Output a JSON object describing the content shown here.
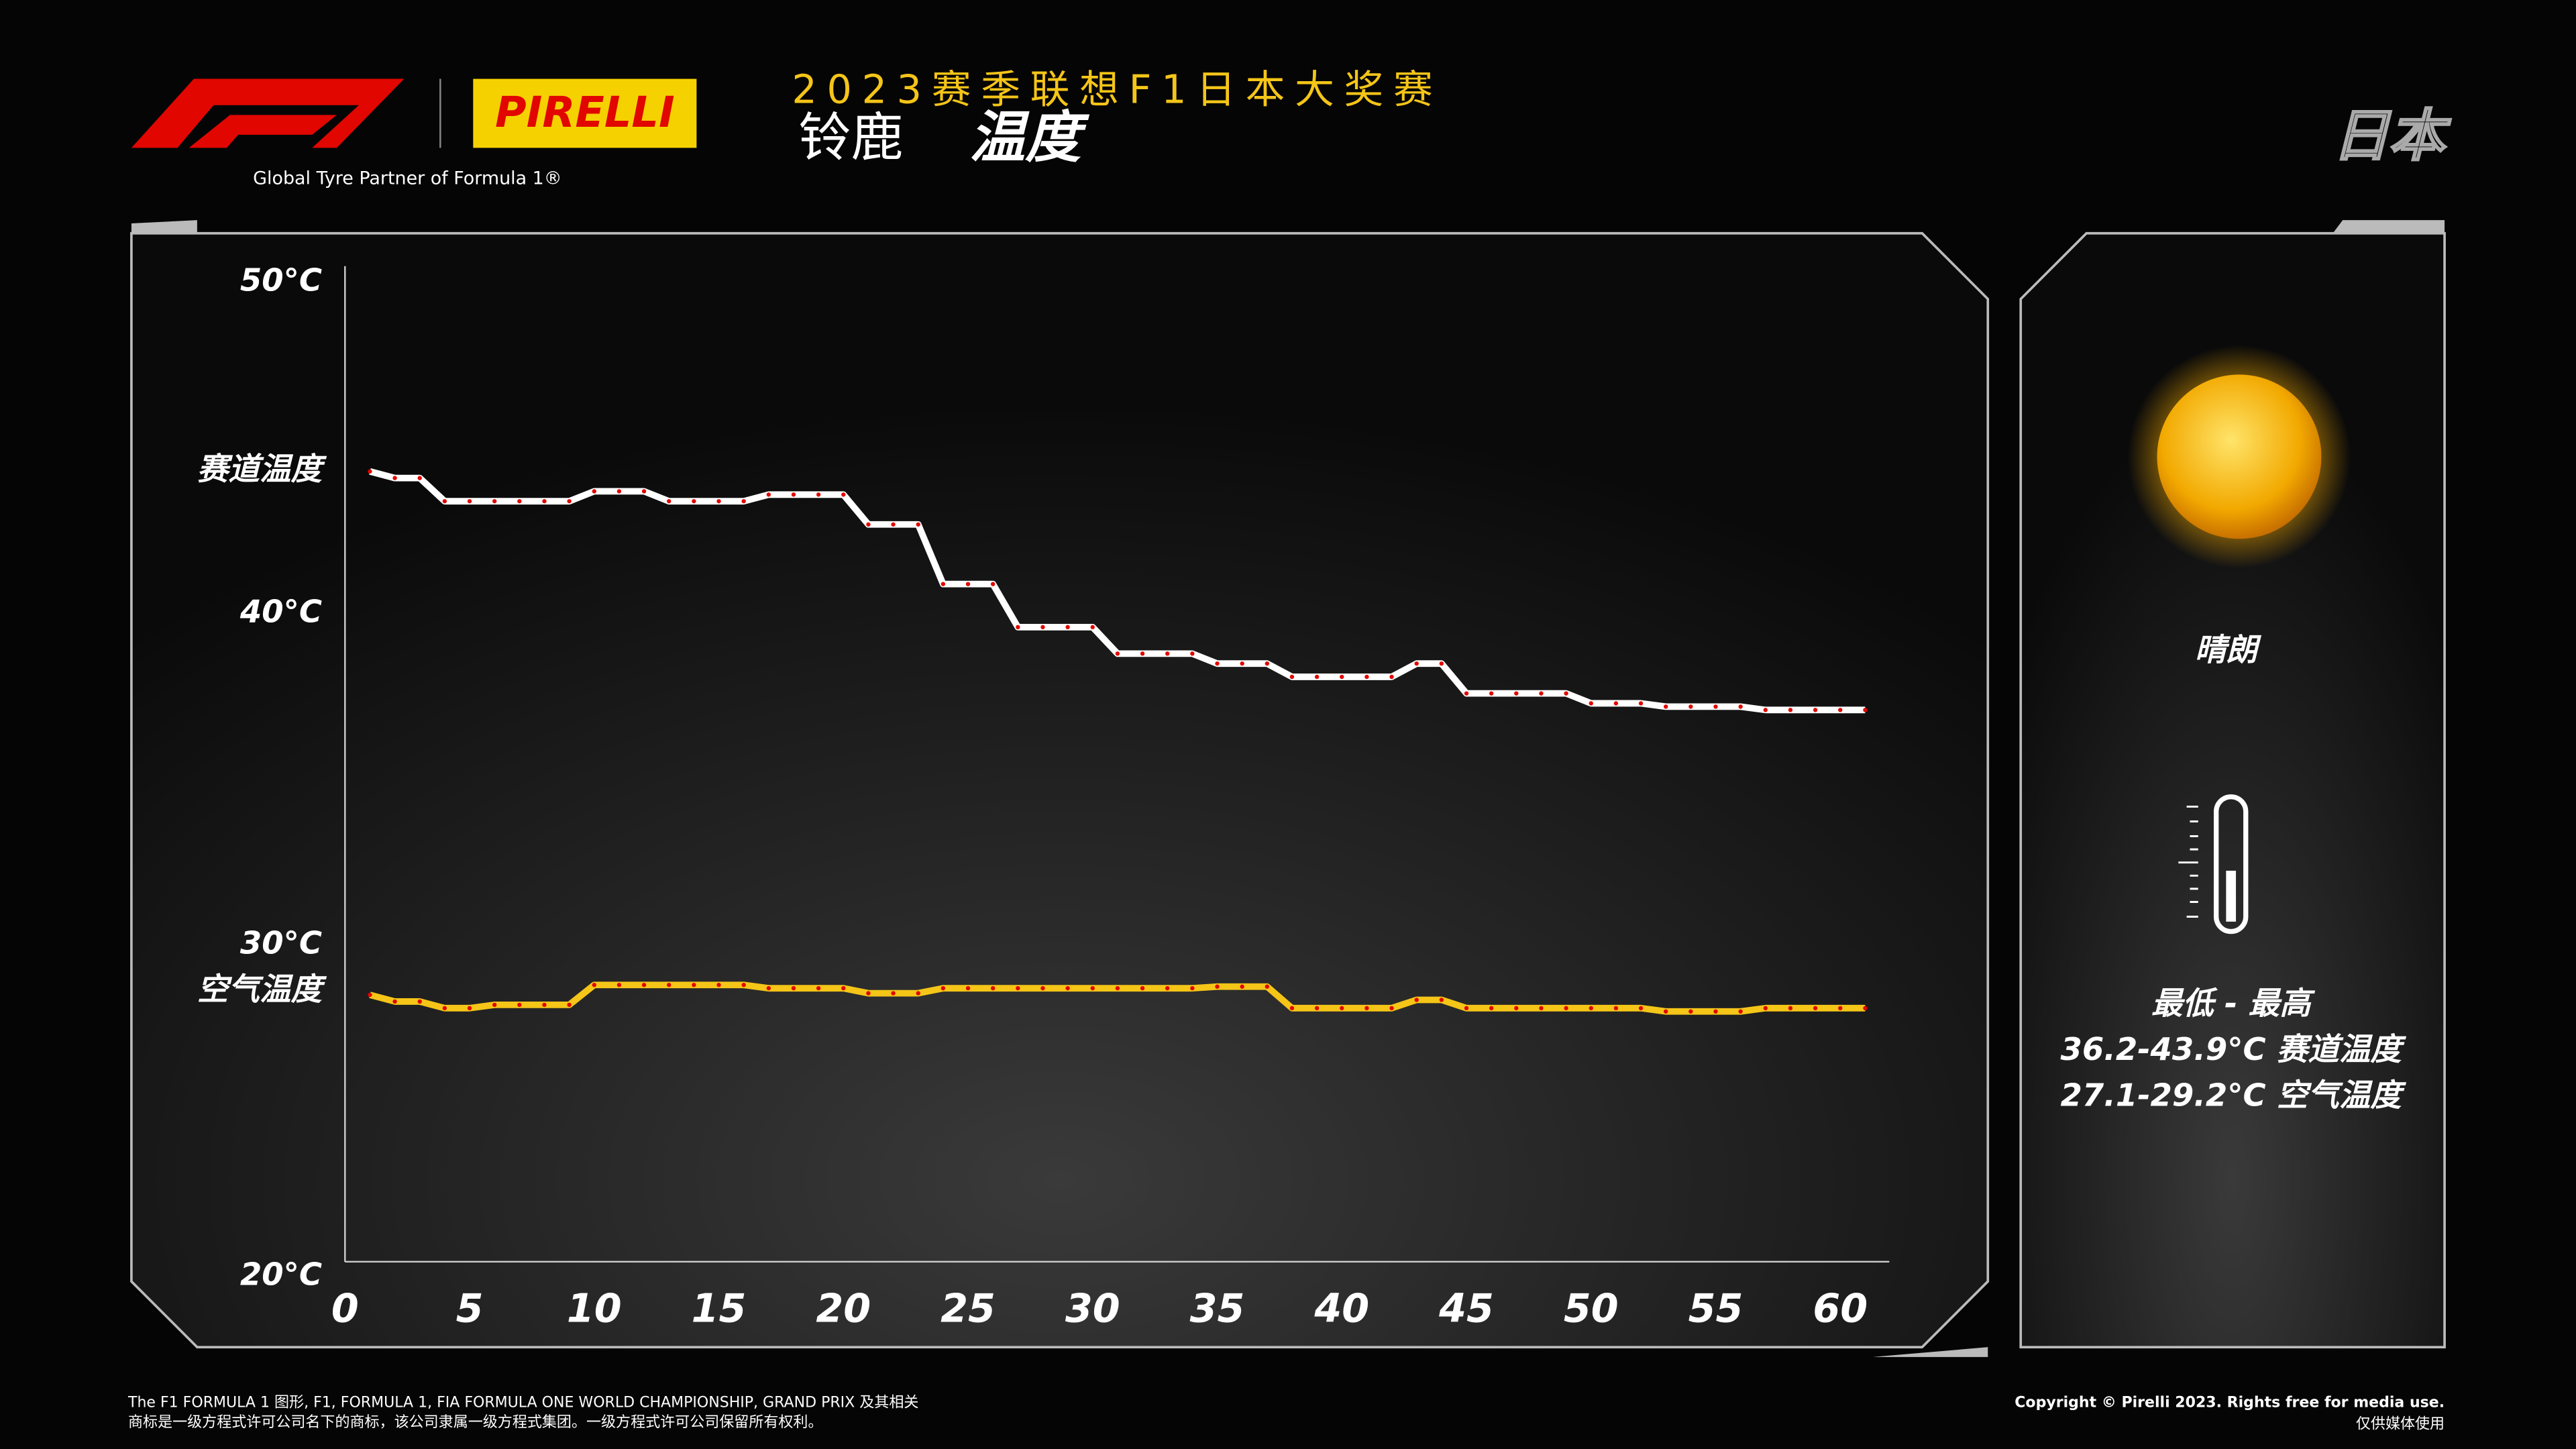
{
  "header": {
    "title": "2023赛季联想F1日本大奖赛",
    "circuit": "铃鹿",
    "subject": "温度",
    "country": "日本",
    "partner": "Global Tyre Partner of Formula 1®",
    "brand": "PIRELLI"
  },
  "chart_data": {
    "type": "line",
    "x": [
      1,
      2,
      3,
      4,
      5,
      6,
      7,
      8,
      9,
      10,
      11,
      12,
      13,
      14,
      15,
      16,
      17,
      18,
      19,
      20,
      21,
      22,
      23,
      24,
      25,
      26,
      27,
      28,
      29,
      30,
      31,
      32,
      33,
      34,
      35,
      36,
      37,
      38,
      39,
      40,
      41,
      42,
      43,
      44,
      45,
      46,
      47,
      48,
      49,
      50,
      51,
      52,
      53,
      54,
      55,
      56,
      57,
      58,
      59,
      60,
      61
    ],
    "series": [
      {
        "name": "赛道温度",
        "color": "#ffffff",
        "values": [
          44.3,
          44.1,
          44.1,
          43.4,
          43.4,
          43.4,
          43.4,
          43.4,
          43.4,
          43.7,
          43.7,
          43.7,
          43.4,
          43.4,
          43.4,
          43.4,
          43.6,
          43.6,
          43.6,
          43.6,
          42.7,
          42.7,
          42.7,
          40.9,
          40.9,
          40.9,
          39.6,
          39.6,
          39.6,
          39.6,
          38.8,
          38.8,
          38.8,
          38.8,
          38.5,
          38.5,
          38.5,
          38.1,
          38.1,
          38.1,
          38.1,
          38.1,
          38.5,
          38.5,
          37.6,
          37.6,
          37.6,
          37.6,
          37.6,
          37.3,
          37.3,
          37.3,
          37.2,
          37.2,
          37.2,
          37.2,
          37.1,
          37.1,
          37.1,
          37.1,
          37.1
        ]
      },
      {
        "name": "空气温度",
        "color": "#f5c518",
        "values": [
          28.5,
          28.3,
          28.3,
          28.1,
          28.1,
          28.2,
          28.2,
          28.2,
          28.2,
          28.8,
          28.8,
          28.8,
          28.8,
          28.8,
          28.8,
          28.8,
          28.7,
          28.7,
          28.7,
          28.7,
          28.55,
          28.55,
          28.55,
          28.7,
          28.7,
          28.7,
          28.7,
          28.7,
          28.7,
          28.7,
          28.7,
          28.7,
          28.7,
          28.7,
          28.75,
          28.75,
          28.75,
          28.1,
          28.1,
          28.1,
          28.1,
          28.1,
          28.35,
          28.35,
          28.1,
          28.1,
          28.1,
          28.1,
          28.1,
          28.1,
          28.1,
          28.1,
          28.0,
          28.0,
          28.0,
          28.0,
          28.1,
          28.1,
          28.1,
          28.1,
          28.1
        ]
      }
    ],
    "xlim": [
      0,
      62
    ],
    "xticks": [
      0,
      5,
      10,
      15,
      20,
      25,
      30,
      35,
      40,
      45,
      50,
      55,
      60
    ],
    "ylim": [
      20,
      50
    ],
    "yticks": [
      {
        "value": 20,
        "label": "20°C"
      },
      {
        "value": 30,
        "label": "30°C"
      },
      {
        "value": 40,
        "label": "40°C"
      },
      {
        "value": 50,
        "label": "50°C"
      }
    ],
    "marker_color": "#e10600"
  },
  "summary": {
    "condition": "晴朗",
    "range_header": "最低  -  最高",
    "track_range": "36.2-43.9°C 赛道温度",
    "air_range": "27.1-29.2°C 空气温度"
  },
  "footer": {
    "legal_1": "The F1 FORMULA 1 图形, F1, FORMULA 1, FIA FORMULA ONE WORLD CHAMPIONSHIP, GRAND PRIX 及其相关",
    "legal_2": "商标是一级方程式许可公司名下的商标，该公司隶属一级方程式集团。一级方程式许可公司保留所有权利。",
    "copyright": "Copyright © Pirelli 2023. Rights free for media use.",
    "media_note": "仅供媒体使用"
  }
}
